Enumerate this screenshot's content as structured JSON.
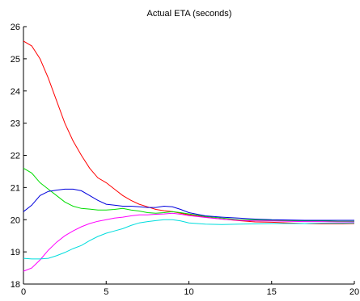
{
  "chart_data": {
    "type": "line",
    "title": "Actual ETA (seconds)",
    "xlabel": "",
    "ylabel": "",
    "xlim": [
      0,
      20
    ],
    "ylim": [
      18,
      26
    ],
    "x_ticks": [
      "0",
      "5",
      "10",
      "15",
      "20"
    ],
    "y_ticks": [
      "18",
      "19",
      "20",
      "21",
      "22",
      "23",
      "24",
      "25",
      "26"
    ],
    "grid": false,
    "series": [
      {
        "color": "#ff0000",
        "x": [
          0,
          0.5,
          1,
          1.5,
          2,
          2.5,
          3,
          3.5,
          4,
          4.5,
          5,
          5.5,
          6,
          6.5,
          7,
          7.5,
          8,
          8.5,
          9,
          9.5,
          10,
          11,
          12,
          13,
          14,
          15,
          16,
          17,
          18,
          19,
          20
        ],
        "y": [
          25.55,
          25.4,
          25.0,
          24.4,
          23.7,
          23.0,
          22.45,
          22.0,
          21.6,
          21.3,
          21.15,
          20.95,
          20.75,
          20.6,
          20.48,
          20.4,
          20.32,
          20.28,
          20.25,
          20.2,
          20.15,
          20.08,
          20.02,
          19.97,
          19.93,
          19.92,
          19.9,
          19.88,
          19.87,
          19.87,
          19.88
        ]
      },
      {
        "color": "#00dd00",
        "x": [
          0,
          0.5,
          1,
          1.5,
          2,
          2.5,
          3,
          3.5,
          4,
          4.5,
          5,
          5.5,
          6,
          6.5,
          7,
          7.5,
          8,
          8.5,
          9,
          9.5,
          10,
          11,
          12,
          13,
          14,
          15,
          16,
          17,
          18,
          19,
          20
        ],
        "y": [
          21.6,
          21.45,
          21.15,
          20.95,
          20.75,
          20.55,
          20.42,
          20.35,
          20.33,
          20.3,
          20.3,
          20.32,
          20.35,
          20.3,
          20.27,
          20.22,
          20.2,
          20.22,
          20.25,
          20.22,
          20.18,
          20.1,
          20.05,
          20.0,
          19.99,
          19.98,
          19.97,
          19.96,
          19.96,
          19.95,
          19.95
        ]
      },
      {
        "color": "#0000dd",
        "x": [
          0,
          0.5,
          1,
          1.5,
          2,
          2.5,
          3,
          3.5,
          4,
          4.5,
          5,
          5.5,
          6,
          6.5,
          7,
          7.5,
          8,
          8.5,
          9,
          9.5,
          10,
          11,
          12,
          13,
          14,
          15,
          16,
          17,
          18,
          19,
          20
        ],
        "y": [
          20.25,
          20.45,
          20.75,
          20.88,
          20.92,
          20.95,
          20.95,
          20.9,
          20.75,
          20.6,
          20.48,
          20.45,
          20.42,
          20.42,
          20.4,
          20.38,
          20.38,
          20.42,
          20.4,
          20.32,
          20.22,
          20.12,
          20.08,
          20.05,
          20.02,
          20.0,
          19.99,
          19.98,
          19.98,
          19.98,
          19.98
        ]
      },
      {
        "color": "#ff00ff",
        "x": [
          0,
          0.5,
          1,
          1.5,
          2,
          2.5,
          3,
          3.5,
          4,
          4.5,
          5,
          5.5,
          6,
          6.5,
          7,
          7.5,
          8,
          8.5,
          9,
          9.5,
          10,
          11,
          12,
          13,
          14,
          15,
          16,
          17,
          18,
          19,
          20
        ],
        "y": [
          18.4,
          18.5,
          18.75,
          19.05,
          19.3,
          19.5,
          19.65,
          19.78,
          19.88,
          19.95,
          20.0,
          20.05,
          20.08,
          20.12,
          20.15,
          20.15,
          20.17,
          20.18,
          20.2,
          20.17,
          20.13,
          20.07,
          20.02,
          19.98,
          19.96,
          19.96,
          19.95,
          19.94,
          19.94,
          19.93,
          19.93
        ]
      },
      {
        "color": "#00dddd",
        "x": [
          0,
          0.5,
          1,
          1.5,
          2,
          2.5,
          3,
          3.5,
          4,
          4.5,
          5,
          5.5,
          6,
          6.5,
          7,
          7.5,
          8,
          8.5,
          9,
          9.5,
          10,
          11,
          12,
          13,
          14,
          15,
          16,
          17,
          18,
          19,
          20
        ],
        "y": [
          18.8,
          18.78,
          18.78,
          18.8,
          18.88,
          18.98,
          19.1,
          19.2,
          19.35,
          19.48,
          19.58,
          19.65,
          19.72,
          19.82,
          19.9,
          19.94,
          19.97,
          20.0,
          20.0,
          19.96,
          19.9,
          19.86,
          19.85,
          19.86,
          19.87,
          19.88,
          19.88,
          19.88,
          19.89,
          19.89,
          19.9
        ]
      }
    ]
  }
}
